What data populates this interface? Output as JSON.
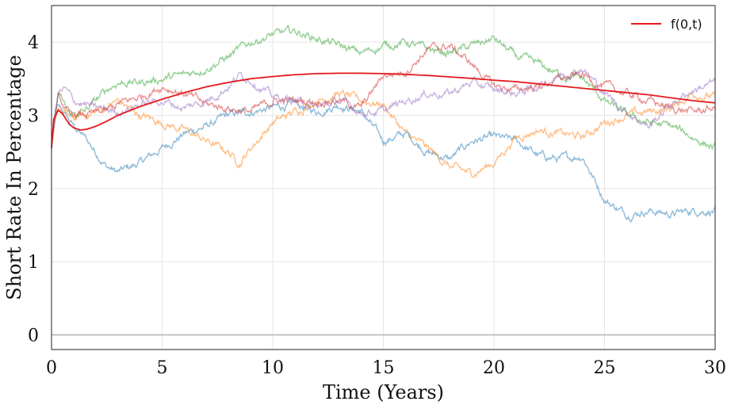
{
  "chart_data": {
    "type": "line",
    "xlabel": "Time (Years)",
    "ylabel": "Short Rate In Percentage",
    "xlim": [
      0,
      30
    ],
    "ylim": [
      -0.2,
      4.5
    ],
    "xticks": [
      0,
      5,
      10,
      15,
      20,
      25,
      30
    ],
    "yticks": [
      0,
      1,
      2,
      3,
      4
    ],
    "grid": true,
    "legend": {
      "placement": "top-right",
      "entries": [
        "f(0,t)"
      ]
    },
    "reference_line": {
      "y": 0,
      "color": "#b0b0b0"
    },
    "series": [
      {
        "name": "f(0,t)",
        "color": "#e41a1c",
        "x": [
          0,
          0.1,
          0.3,
          0.5,
          0.8,
          1,
          1.3,
          1.6,
          2,
          2.5,
          3,
          4,
          5,
          6,
          7,
          8,
          9,
          10,
          11,
          12,
          13,
          14,
          15,
          16,
          17,
          18,
          19,
          20,
          21,
          22,
          23,
          24,
          25,
          26,
          27,
          28,
          29,
          30
        ],
        "y": [
          2.55,
          2.95,
          3.07,
          3.02,
          2.88,
          2.83,
          2.8,
          2.81,
          2.85,
          2.92,
          3.0,
          3.12,
          3.22,
          3.31,
          3.39,
          3.45,
          3.5,
          3.53,
          3.555,
          3.57,
          3.575,
          3.575,
          3.57,
          3.56,
          3.545,
          3.525,
          3.505,
          3.48,
          3.46,
          3.43,
          3.4,
          3.37,
          3.34,
          3.31,
          3.28,
          3.24,
          3.2,
          3.17
        ]
      },
      {
        "color": "#1f77b4",
        "x": [
          0,
          0.2,
          0.5,
          1,
          1.5,
          2,
          2.5,
          3,
          4,
          5,
          6,
          7,
          8,
          9,
          10,
          11,
          12,
          13,
          14,
          15,
          16,
          17,
          18,
          19,
          20,
          21,
          22,
          23,
          24,
          25,
          26,
          27,
          28,
          29,
          30
        ],
        "y": [
          2.6,
          3.1,
          3.05,
          2.85,
          2.7,
          2.5,
          2.3,
          2.22,
          2.35,
          2.55,
          2.75,
          2.85,
          3.0,
          3.05,
          3.1,
          3.15,
          3.05,
          3.15,
          3.05,
          2.65,
          2.75,
          2.5,
          2.4,
          2.65,
          2.7,
          2.65,
          2.45,
          2.4,
          2.45,
          1.85,
          1.65,
          1.7,
          1.65,
          1.7,
          1.7
        ]
      },
      {
        "color": "#ff7f0e",
        "x": [
          0,
          0.3,
          0.7,
          1,
          2,
          3,
          4,
          5,
          6,
          7,
          8,
          8.5,
          9,
          10,
          11,
          12,
          13,
          14,
          15,
          16,
          17,
          18,
          19,
          20,
          21,
          22,
          23,
          24,
          25,
          26,
          27,
          28,
          29,
          30
        ],
        "y": [
          2.6,
          3.1,
          3.0,
          2.95,
          3.05,
          3.2,
          3.0,
          2.9,
          2.8,
          2.65,
          2.5,
          2.35,
          2.55,
          2.9,
          3.05,
          3.2,
          3.3,
          3.2,
          3.15,
          2.75,
          2.55,
          2.3,
          2.2,
          2.35,
          2.7,
          2.8,
          2.75,
          2.7,
          2.9,
          3.0,
          3.05,
          3.1,
          3.3,
          3.25
        ]
      },
      {
        "color": "#2ca02c",
        "x": [
          0,
          0.3,
          0.8,
          1.5,
          2.5,
          3,
          4,
          5,
          6,
          7,
          8,
          9,
          10,
          11,
          12,
          13,
          14,
          15,
          16,
          17,
          18,
          19,
          20,
          21,
          22,
          23,
          24,
          25,
          26,
          27,
          28,
          29,
          30
        ],
        "y": [
          2.6,
          3.3,
          3.0,
          3.05,
          3.35,
          3.45,
          3.45,
          3.5,
          3.55,
          3.65,
          3.8,
          4.0,
          4.1,
          4.15,
          4.05,
          3.95,
          3.85,
          3.95,
          4.0,
          3.9,
          3.85,
          3.95,
          4.05,
          3.8,
          3.7,
          3.55,
          3.5,
          3.2,
          3.0,
          2.9,
          2.85,
          2.7,
          2.55
        ]
      },
      {
        "color": "#d62728",
        "x": [
          0,
          0.3,
          0.8,
          1.5,
          2.5,
          3,
          4,
          5,
          6,
          7,
          8,
          9,
          10,
          11,
          12,
          13,
          14,
          15,
          16,
          17,
          18,
          19,
          20,
          21,
          22,
          23,
          24,
          25,
          26,
          27,
          28,
          29,
          30
        ],
        "y": [
          2.6,
          3.25,
          3.0,
          3.0,
          3.05,
          3.15,
          3.25,
          3.4,
          3.3,
          3.15,
          3.1,
          3.05,
          3.2,
          3.2,
          3.2,
          3.2,
          3.1,
          3.55,
          3.6,
          3.9,
          3.95,
          3.7,
          3.4,
          3.35,
          3.4,
          3.5,
          3.55,
          3.4,
          3.3,
          3.2,
          3.1,
          3.05,
          3.1
        ]
      },
      {
        "color": "#9467bd",
        "x": [
          0,
          0.3,
          0.6,
          1,
          2,
          3,
          4,
          5,
          6,
          7,
          8,
          8.5,
          9,
          10,
          11,
          12,
          13,
          14,
          15,
          16,
          17,
          18,
          19,
          20,
          21,
          22,
          23,
          24,
          25,
          26,
          27,
          28,
          29,
          30
        ],
        "y": [
          2.6,
          3.3,
          3.35,
          3.2,
          3.1,
          3.05,
          3.15,
          3.2,
          3.1,
          3.2,
          3.4,
          3.55,
          3.5,
          3.25,
          3.2,
          3.1,
          3.2,
          3.05,
          3.05,
          3.2,
          3.3,
          3.3,
          3.45,
          3.35,
          3.3,
          3.4,
          3.55,
          3.65,
          3.3,
          3.05,
          2.85,
          3.15,
          3.35,
          3.45
        ]
      }
    ]
  }
}
